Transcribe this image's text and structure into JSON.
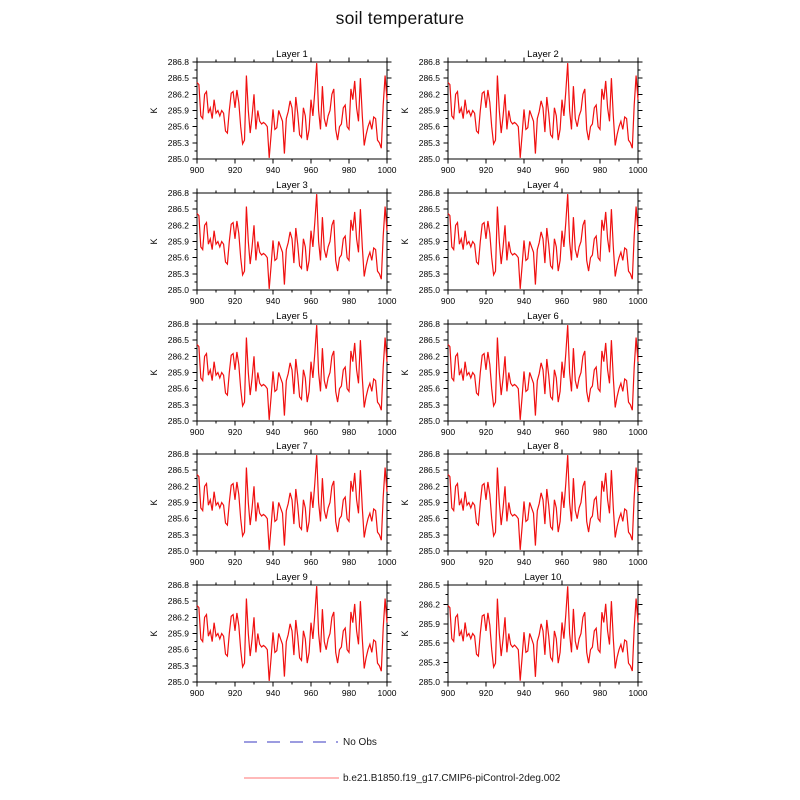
{
  "page": {
    "title": "soil temperature",
    "background": "#ffffff"
  },
  "chart_data": {
    "type": "line",
    "layout": "grid-5rows-2cols",
    "title": "soil temperature",
    "ylabel": "K",
    "series_name": "b.e21.B1850.f19_g17.CMIP6-piControl-2deg.002",
    "series_color": "#f01010",
    "axis_color": "#000000",
    "x": {
      "start": 900,
      "end": 1000,
      "step": 1,
      "tick_values": [
        900,
        920,
        940,
        960,
        980,
        1000
      ],
      "minor_tick_interval": 10
    },
    "base_values": [
      286.42,
      286.38,
      285.8,
      285.75,
      286.2,
      286.25,
      285.85,
      285.95,
      285.75,
      286.1,
      285.85,
      285.9,
      285.8,
      285.9,
      285.85,
      285.52,
      285.48,
      285.9,
      286.22,
      286.25,
      285.95,
      286.28,
      286.05,
      285.6,
      285.28,
      285.35,
      286.55,
      285.9,
      285.48,
      285.8,
      286.2,
      285.55,
      285.9,
      285.7,
      285.65,
      285.68,
      285.65,
      285.6,
      285.02,
      285.45,
      285.92,
      285.55,
      285.58,
      285.9,
      285.8,
      285.7,
      285.1,
      285.75,
      285.88,
      286.08,
      285.95,
      285.5,
      286.15,
      285.85,
      285.45,
      285.4,
      285.95,
      285.8,
      285.35,
      285.55,
      286.1,
      285.8,
      286.25,
      286.78,
      285.9,
      285.55,
      286.35,
      285.75,
      285.6,
      285.8,
      285.9,
      286.2,
      286.3,
      285.55,
      285.35,
      285.6,
      285.65,
      285.95,
      286.0,
      285.6,
      285.55,
      286.3,
      286.1,
      286.45,
      285.95,
      285.7,
      286.5,
      285.8,
      285.25,
      285.45,
      285.6,
      285.7,
      285.55,
      285.78,
      285.75,
      285.35,
      285.3,
      285.2,
      286.0,
      286.55,
      286.1
    ],
    "layer10_values": [
      286.18,
      286.15,
      285.67,
      285.63,
      286.0,
      286.04,
      285.71,
      285.79,
      285.63,
      285.92,
      285.71,
      285.75,
      285.67,
      285.75,
      285.71,
      285.43,
      285.4,
      285.75,
      286.02,
      286.04,
      285.79,
      286.07,
      285.88,
      285.5,
      285.23,
      285.29,
      286.29,
      285.75,
      285.4,
      285.67,
      286.0,
      285.46,
      285.75,
      285.58,
      285.54,
      285.57,
      285.54,
      285.5,
      285.02,
      285.38,
      285.77,
      285.46,
      285.48,
      285.75,
      285.67,
      285.58,
      285.08,
      285.63,
      285.73,
      285.9,
      285.79,
      285.42,
      285.96,
      285.71,
      285.38,
      285.33,
      285.79,
      285.67,
      285.29,
      285.46,
      285.92,
      285.67,
      286.04,
      286.48,
      285.75,
      285.46,
      286.13,
      285.63,
      285.5,
      285.67,
      285.75,
      286.0,
      286.08,
      285.46,
      285.29,
      285.5,
      285.54,
      285.79,
      285.83,
      285.5,
      285.46,
      286.08,
      285.92,
      286.21,
      285.79,
      285.58,
      286.25,
      285.67,
      285.21,
      285.38,
      285.5,
      285.58,
      285.46,
      285.65,
      285.63,
      285.29,
      285.25,
      285.17,
      285.83,
      286.29,
      285.92
    ],
    "panels": [
      {
        "title": "Layer 1",
        "ylim": [
          285.0,
          286.8
        ],
        "yticks": [
          285.0,
          285.3,
          285.6,
          285.9,
          286.2,
          286.5,
          286.8
        ],
        "minor_tick_interval": 0.15,
        "values_key": "base_values"
      },
      {
        "title": "Layer 2",
        "ylim": [
          285.0,
          286.8
        ],
        "yticks": [
          285.0,
          285.3,
          285.6,
          285.9,
          286.2,
          286.5,
          286.8
        ],
        "minor_tick_interval": 0.15,
        "values_key": "base_values"
      },
      {
        "title": "Layer 3",
        "ylim": [
          285.0,
          286.8
        ],
        "yticks": [
          285.0,
          285.3,
          285.6,
          285.9,
          286.2,
          286.5,
          286.8
        ],
        "minor_tick_interval": 0.15,
        "values_key": "base_values"
      },
      {
        "title": "Layer 4",
        "ylim": [
          285.0,
          286.8
        ],
        "yticks": [
          285.0,
          285.3,
          285.6,
          285.9,
          286.2,
          286.5,
          286.8
        ],
        "minor_tick_interval": 0.15,
        "values_key": "base_values"
      },
      {
        "title": "Layer 5",
        "ylim": [
          285.0,
          286.8
        ],
        "yticks": [
          285.0,
          285.3,
          285.6,
          285.9,
          286.2,
          286.5,
          286.8
        ],
        "minor_tick_interval": 0.15,
        "values_key": "base_values"
      },
      {
        "title": "Layer 6",
        "ylim": [
          285.0,
          286.8
        ],
        "yticks": [
          285.0,
          285.3,
          285.6,
          285.9,
          286.2,
          286.5,
          286.8
        ],
        "minor_tick_interval": 0.15,
        "values_key": "base_values"
      },
      {
        "title": "Layer 7",
        "ylim": [
          285.0,
          286.8
        ],
        "yticks": [
          285.0,
          285.3,
          285.6,
          285.9,
          286.2,
          286.5,
          286.8
        ],
        "minor_tick_interval": 0.15,
        "values_key": "base_values"
      },
      {
        "title": "Layer 8",
        "ylim": [
          285.0,
          286.8
        ],
        "yticks": [
          285.0,
          285.3,
          285.6,
          285.9,
          286.2,
          286.5,
          286.8
        ],
        "minor_tick_interval": 0.15,
        "values_key": "base_values"
      },
      {
        "title": "Layer 9",
        "ylim": [
          285.0,
          286.8
        ],
        "yticks": [
          285.0,
          285.3,
          285.6,
          285.9,
          286.2,
          286.5,
          286.8
        ],
        "minor_tick_interval": 0.15,
        "values_key": "base_values"
      },
      {
        "title": "Layer 10",
        "ylim": [
          285.0,
          286.5
        ],
        "yticks": [
          285.0,
          285.3,
          285.6,
          285.9,
          286.2,
          286.5
        ],
        "minor_tick_interval": 0.15,
        "values_key": "layer10_values"
      }
    ]
  },
  "legend": {
    "items": [
      {
        "label": "No Obs",
        "line_style": "dashed",
        "color": "#9c9ce0"
      },
      {
        "label": "b.e21.B1850.f19_g17.CMIP6-piControl-2deg.002",
        "line_style": "solid",
        "color": "#ffa2a2"
      }
    ]
  }
}
